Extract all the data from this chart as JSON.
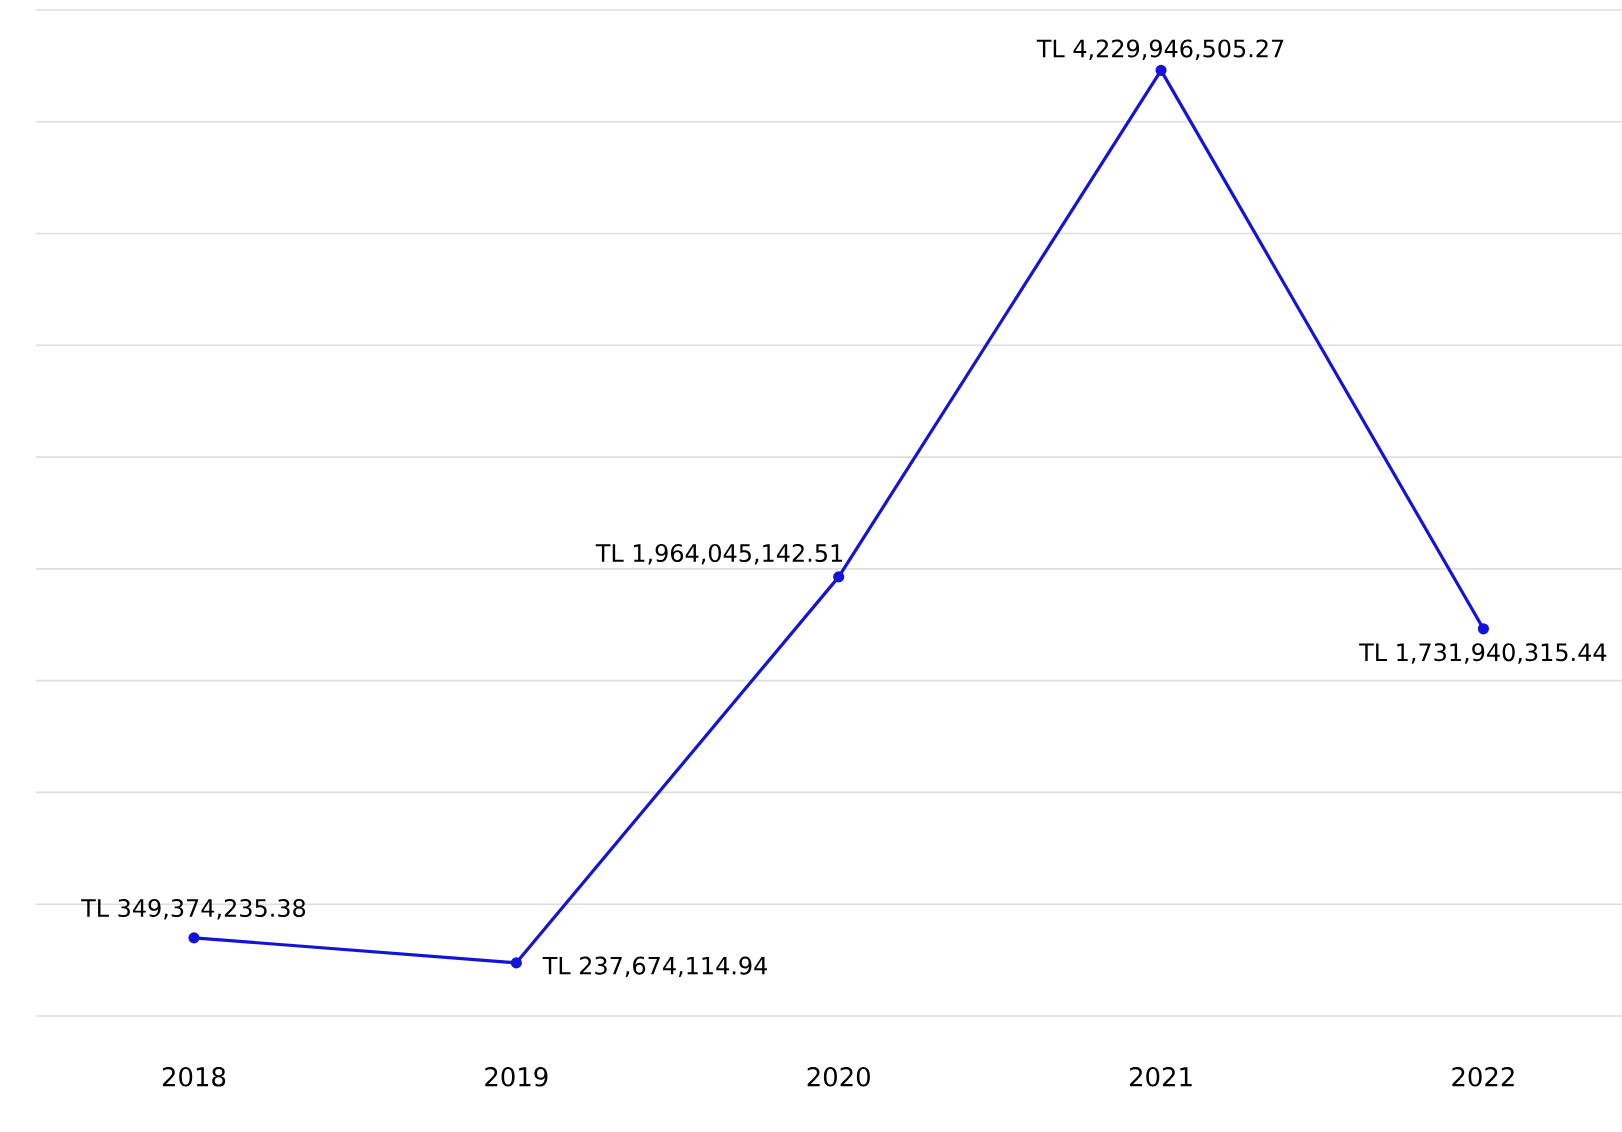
{
  "chart_data": {
    "type": "line",
    "categories": [
      "2018",
      "2019",
      "2020",
      "2021",
      "2022"
    ],
    "series": [
      {
        "color": "#1414d8",
        "values": [
          349374235.38,
          237674114.94,
          1964045142.51,
          4229946505.27,
          1731940315.44
        ],
        "value_labels": [
          "TL 349,374,235.38",
          "TL 237,674,114.94",
          "TL 1,964,045,142.51",
          "TL 4,229,946,505.27",
          "TL 1,731,940,315.44"
        ]
      }
    ],
    "ylim": [
      0,
      4500000000
    ],
    "yticks": [
      {
        "value": 0,
        "label": null
      },
      {
        "value": 500000000,
        "label": null
      },
      {
        "value": 1000000000,
        "label": null
      },
      {
        "value": 1500000000,
        "label": null
      },
      {
        "value": 2000000000,
        "label": null
      },
      {
        "value": 2500000000,
        "label": null
      },
      {
        "value": 3000000000,
        "label": null
      },
      {
        "value": 3500000000,
        "label": null
      },
      {
        "value": 4000000000,
        "label": null
      },
      {
        "value": 4500000000,
        "label": null
      }
    ],
    "grid": "y",
    "marker": "circle",
    "line_style": "solid",
    "tick_labels": "x"
  }
}
